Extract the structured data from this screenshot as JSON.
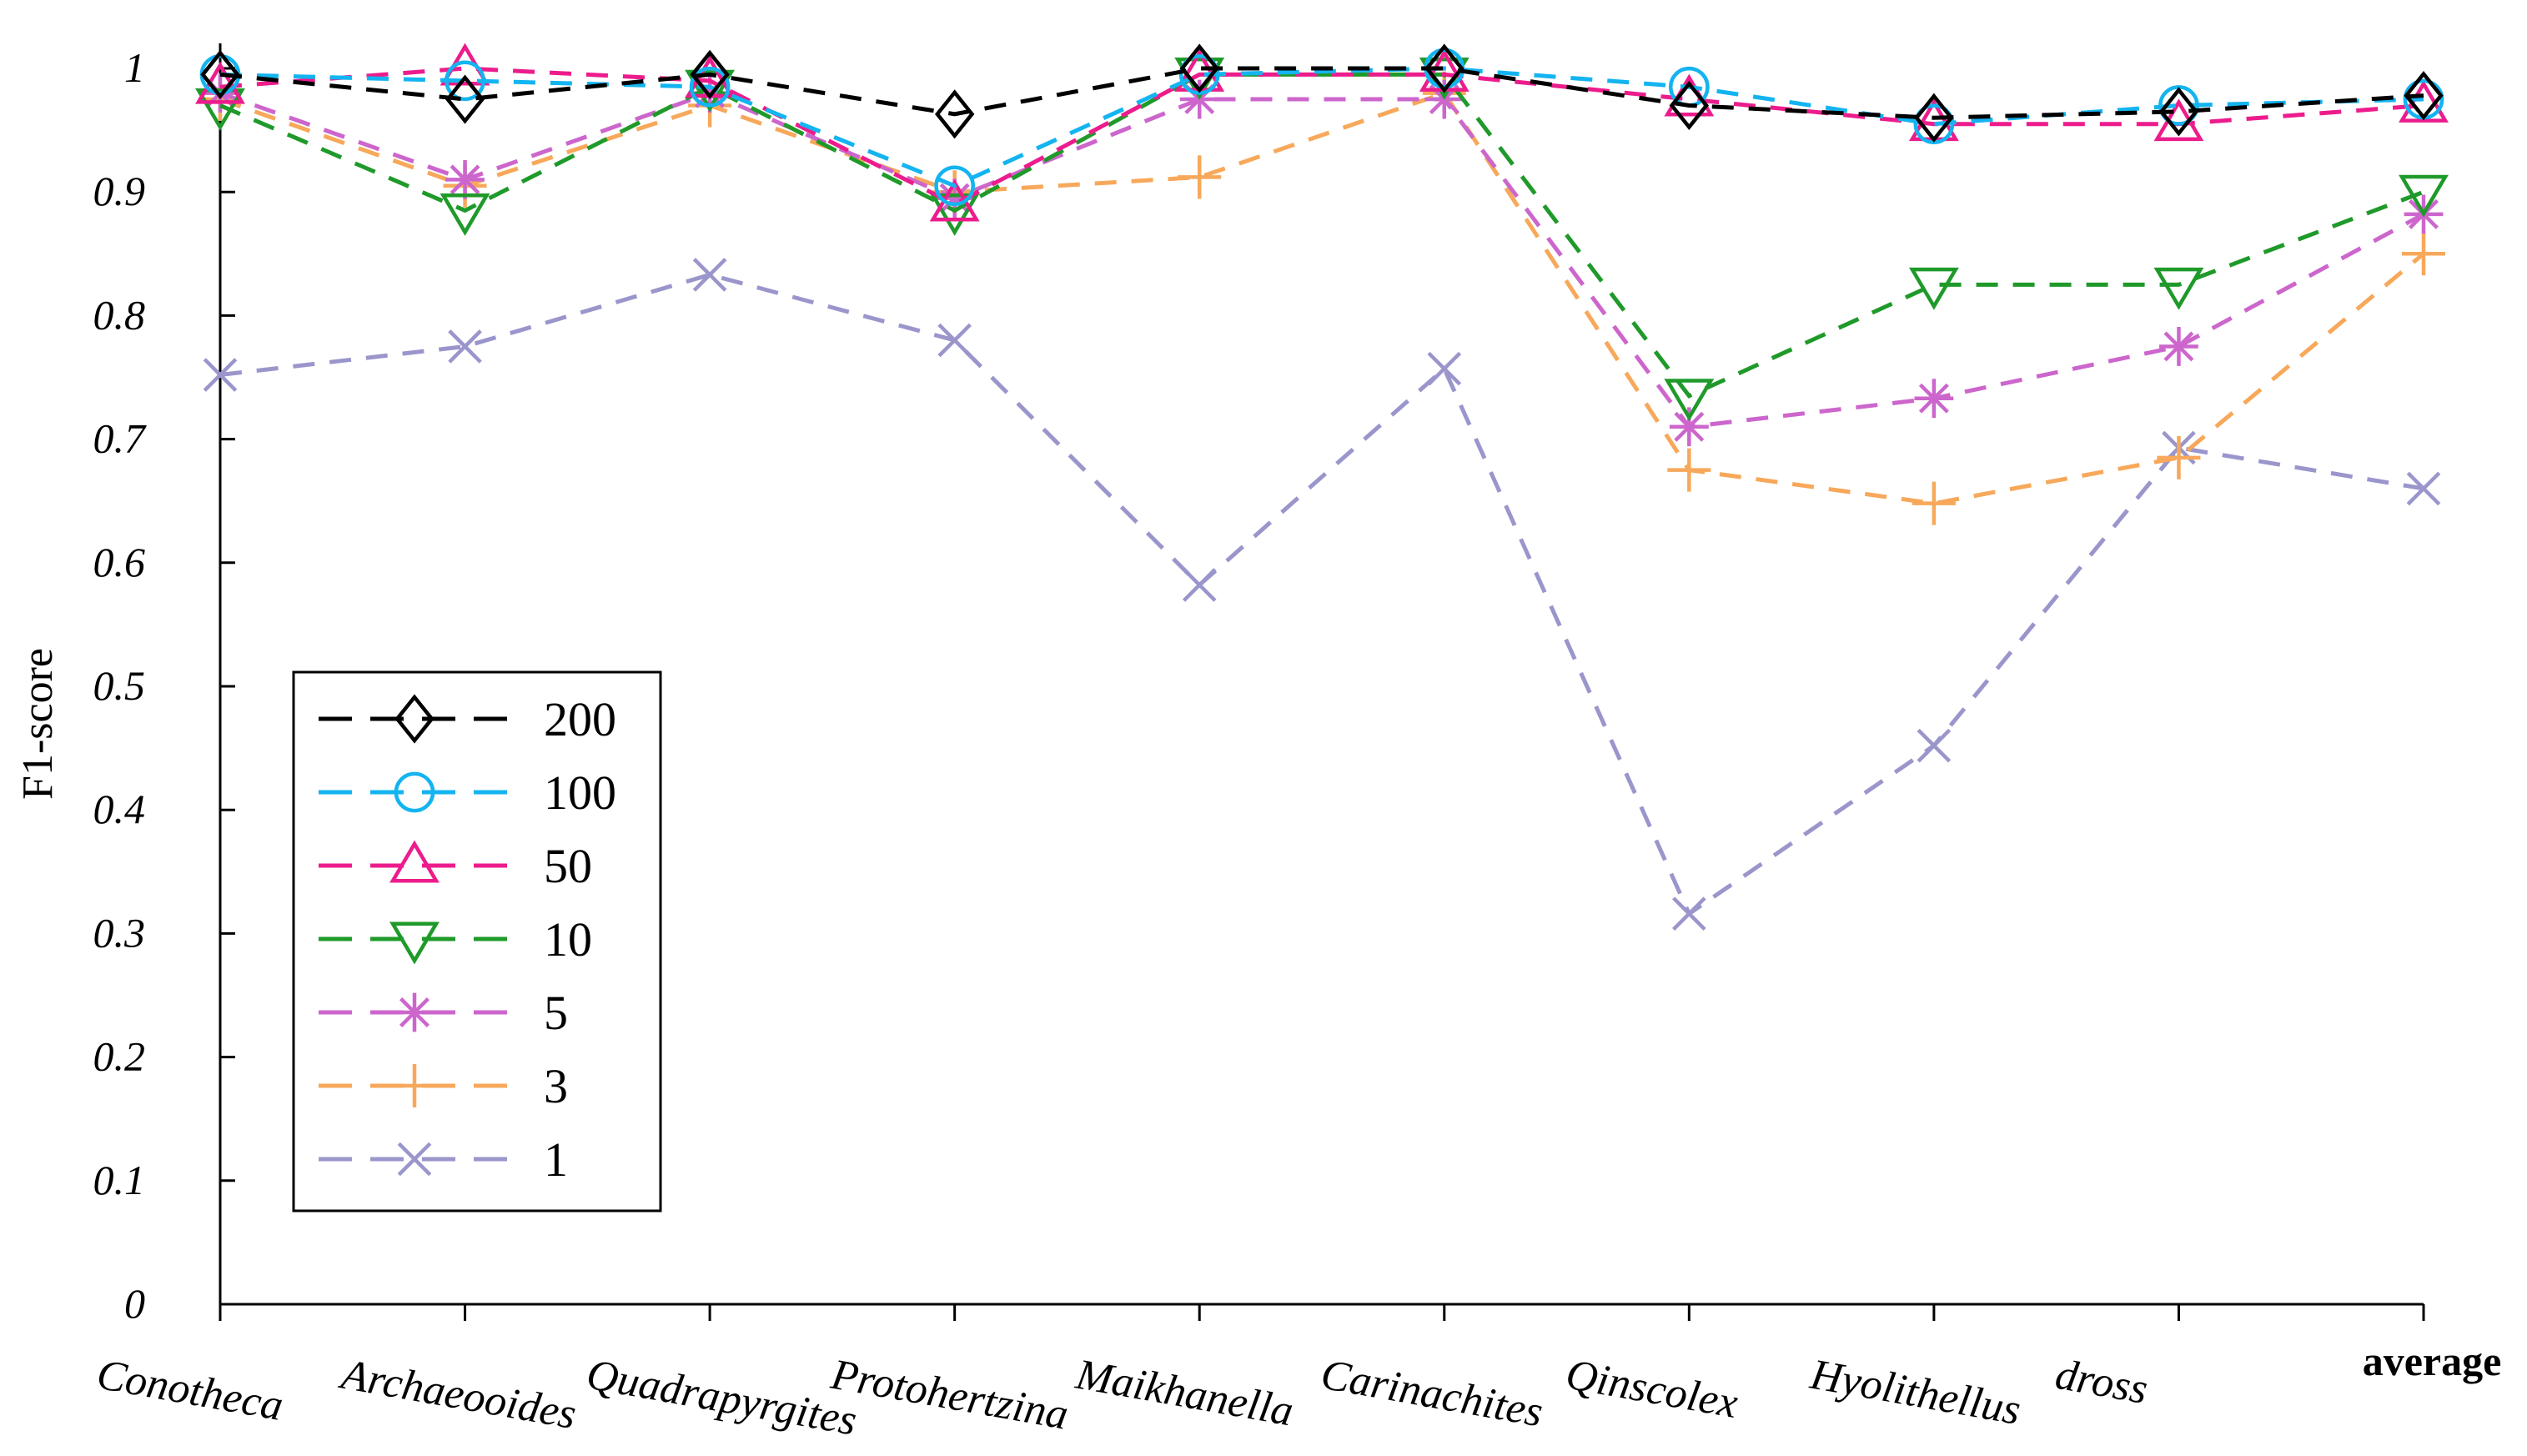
{
  "chart_data": {
    "type": "line",
    "title": "",
    "xlabel": "",
    "ylabel": "F1-score",
    "ylim": [
      0,
      1
    ],
    "yticks": [
      "0",
      "0.1",
      "0.2",
      "0.3",
      "0.4",
      "0.5",
      "0.6",
      "0.7",
      "0.8",
      "0.9",
      "1"
    ],
    "categories": [
      "Conotheca",
      "Archaeooides",
      "Quadrapyrgites",
      "Protohertzina",
      "Maikhanella",
      "Carinachites",
      "Qinscolex",
      "Hyolithellus",
      "dross",
      "average"
    ],
    "legend_position": "lower-left",
    "grid": false,
    "series": [
      {
        "name": "200",
        "color": "#000000",
        "marker": "diamond",
        "values": [
          0.995,
          0.975,
          0.995,
          0.963,
          1.0,
          1.0,
          0.97,
          0.96,
          0.965,
          0.978
        ]
      },
      {
        "name": "100",
        "color": "#14b4f0",
        "marker": "circle",
        "values": [
          0.995,
          0.99,
          0.985,
          0.905,
          0.995,
          1.0,
          0.985,
          0.955,
          0.97,
          0.975
        ]
      },
      {
        "name": "50",
        "color": "#ec1c8c",
        "marker": "triangle-up",
        "values": [
          0.985,
          1.0,
          0.99,
          0.89,
          0.995,
          0.995,
          0.975,
          0.955,
          0.955,
          0.97
        ]
      },
      {
        "name": "10",
        "color": "#1f9a2a",
        "marker": "triangle-down",
        "values": [
          0.97,
          0.885,
          0.985,
          0.885,
          0.995,
          0.995,
          0.735,
          0.825,
          0.825,
          0.9
        ]
      },
      {
        "name": "5",
        "color": "#cc66cc",
        "marker": "asterisk",
        "values": [
          0.98,
          0.91,
          0.98,
          0.895,
          0.975,
          0.975,
          0.71,
          0.733,
          0.775,
          0.882
        ]
      },
      {
        "name": "3",
        "color": "#f7a85a",
        "marker": "plus",
        "values": [
          0.975,
          0.905,
          0.97,
          0.9,
          0.912,
          0.98,
          0.675,
          0.648,
          0.685,
          0.85
        ]
      },
      {
        "name": "1",
        "color": "#9a96cc",
        "marker": "x",
        "values": [
          0.752,
          0.775,
          0.833,
          0.78,
          0.582,
          0.757,
          0.316,
          0.452,
          0.693,
          0.66
        ]
      }
    ]
  }
}
